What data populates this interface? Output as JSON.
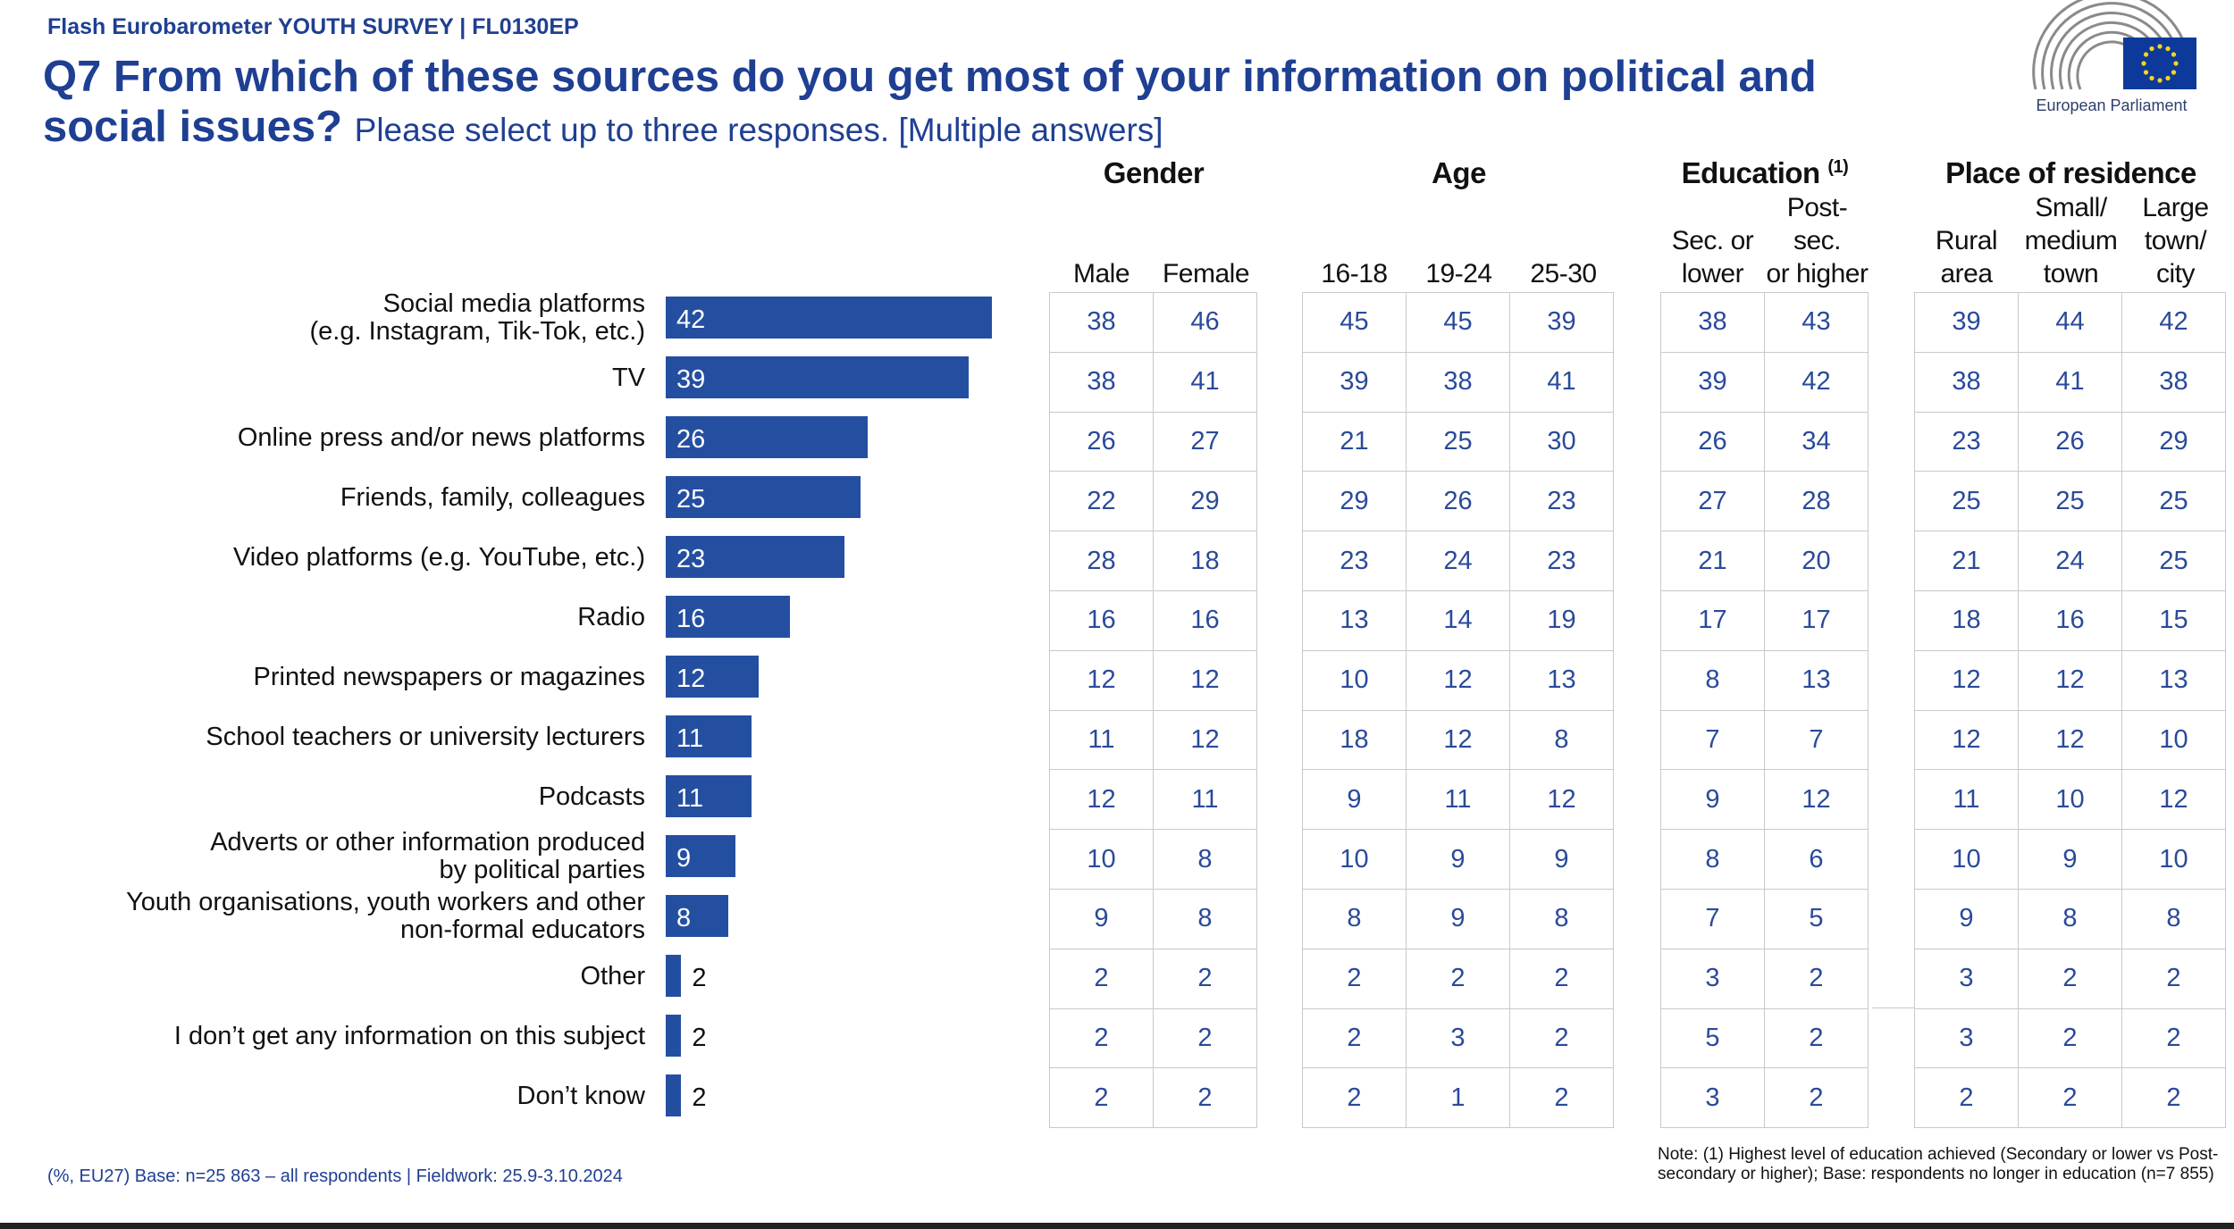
{
  "header": {
    "survey": "Flash Eurobarometer YOUTH SURVEY | FL0130EP",
    "title": "Q7 From which of these sources do you get most of your information on political and social issues?",
    "subtitle": "Please select up to three responses. [Multiple answers]",
    "logo_text": "European Parliament"
  },
  "groups": {
    "gender": "Gender",
    "age": "Age",
    "education": "Education",
    "education_sup": "(1)",
    "residence": "Place of residence"
  },
  "columns": [
    [
      "Male"
    ],
    [
      "Female"
    ],
    [
      "16-18"
    ],
    [
      "19-24"
    ],
    [
      "25-30"
    ],
    [
      "Sec. or",
      "lower"
    ],
    [
      "Post-sec.",
      "or higher"
    ],
    [
      "Rural area"
    ],
    [
      "Small/",
      "medium",
      "town"
    ],
    [
      "Large",
      "town/",
      "city"
    ]
  ],
  "chart_data": {
    "type": "bar",
    "orientation": "horizontal",
    "unit": "%",
    "categories": [
      [
        "Social media platforms",
        "(e.g. Instagram, Tik-Tok, etc.)"
      ],
      [
        "TV"
      ],
      [
        "Online press and/or news platforms"
      ],
      [
        "Friends, family, colleagues"
      ],
      [
        "Video platforms (e.g. YouTube, etc.)"
      ],
      [
        "Radio"
      ],
      [
        "Printed newspapers or magazines"
      ],
      [
        "School teachers or university lecturers"
      ],
      [
        "Podcasts"
      ],
      [
        "Adverts or other information produced",
        "by political parties"
      ],
      [
        "Youth organisations, youth workers and other",
        "non-formal educators"
      ],
      [
        "Other"
      ],
      [
        "I don’t get any information on this subject"
      ],
      [
        "Don’t know"
      ]
    ],
    "values": [
      42,
      39,
      26,
      25,
      23,
      16,
      12,
      11,
      11,
      9,
      8,
      2,
      2,
      2
    ],
    "xlim": [
      0,
      100
    ]
  },
  "table": [
    [
      38,
      46,
      45,
      45,
      39,
      38,
      43,
      39,
      44,
      42
    ],
    [
      38,
      41,
      39,
      38,
      41,
      39,
      42,
      38,
      41,
      38
    ],
    [
      26,
      27,
      21,
      25,
      30,
      26,
      34,
      23,
      26,
      29
    ],
    [
      22,
      29,
      29,
      26,
      23,
      27,
      28,
      25,
      25,
      25
    ],
    [
      28,
      18,
      23,
      24,
      23,
      21,
      20,
      21,
      24,
      25
    ],
    [
      16,
      16,
      13,
      14,
      19,
      17,
      17,
      18,
      16,
      15
    ],
    [
      12,
      12,
      10,
      12,
      13,
      8,
      13,
      12,
      12,
      13
    ],
    [
      11,
      12,
      18,
      12,
      8,
      7,
      7,
      12,
      12,
      10
    ],
    [
      12,
      11,
      9,
      11,
      12,
      9,
      12,
      11,
      10,
      12
    ],
    [
      10,
      8,
      10,
      9,
      9,
      8,
      6,
      10,
      9,
      10
    ],
    [
      9,
      8,
      8,
      9,
      8,
      7,
      5,
      9,
      8,
      8
    ],
    [
      2,
      2,
      2,
      2,
      2,
      3,
      2,
      3,
      2,
      2
    ],
    [
      2,
      2,
      2,
      3,
      2,
      5,
      2,
      3,
      2,
      2
    ],
    [
      2,
      2,
      2,
      1,
      2,
      3,
      2,
      2,
      2,
      2
    ]
  ],
  "footer": {
    "base": "(%, EU27)  Base: n=25 863 – all respondents |  Fieldwork: 25.9-3.10.2024",
    "note": "Note: (1) Highest level of education achieved (Secondary or lower vs Post-secondary or higher); Base: respondents no longer in education (n=7 855)"
  },
  "colors": {
    "bar": "#244fa1",
    "title": "#1f3f93",
    "table_text": "#2a4a9a"
  }
}
